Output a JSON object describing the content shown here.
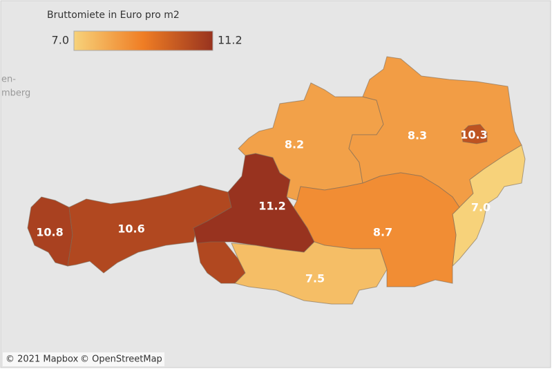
{
  "chart_data": {
    "type": "choropleth",
    "title": "Bruttomiete in Euro pro m2",
    "values": [
      10.8,
      10.6,
      11.2,
      8.2,
      8.3,
      10.3,
      7.0,
      8.7,
      7.5
    ],
    "value_labels": [
      "10.8",
      "10.6",
      "11.2",
      "8.2",
      "8.3",
      "10.3",
      "7.0",
      "8.7",
      "7.5"
    ],
    "colorbar": {
      "min": {
        "value": 7.0,
        "label": "7.0"
      },
      "max": 11.2,
      "colors": [
        "#f7d27a",
        "#ef7d24",
        "#98331f"
      ]
    },
    "map_labels": [
      "en-",
      "mberg"
    ],
    "attribution": [
      "© 2021 Mapbox",
      "© OpenStreetMap"
    ]
  }
}
